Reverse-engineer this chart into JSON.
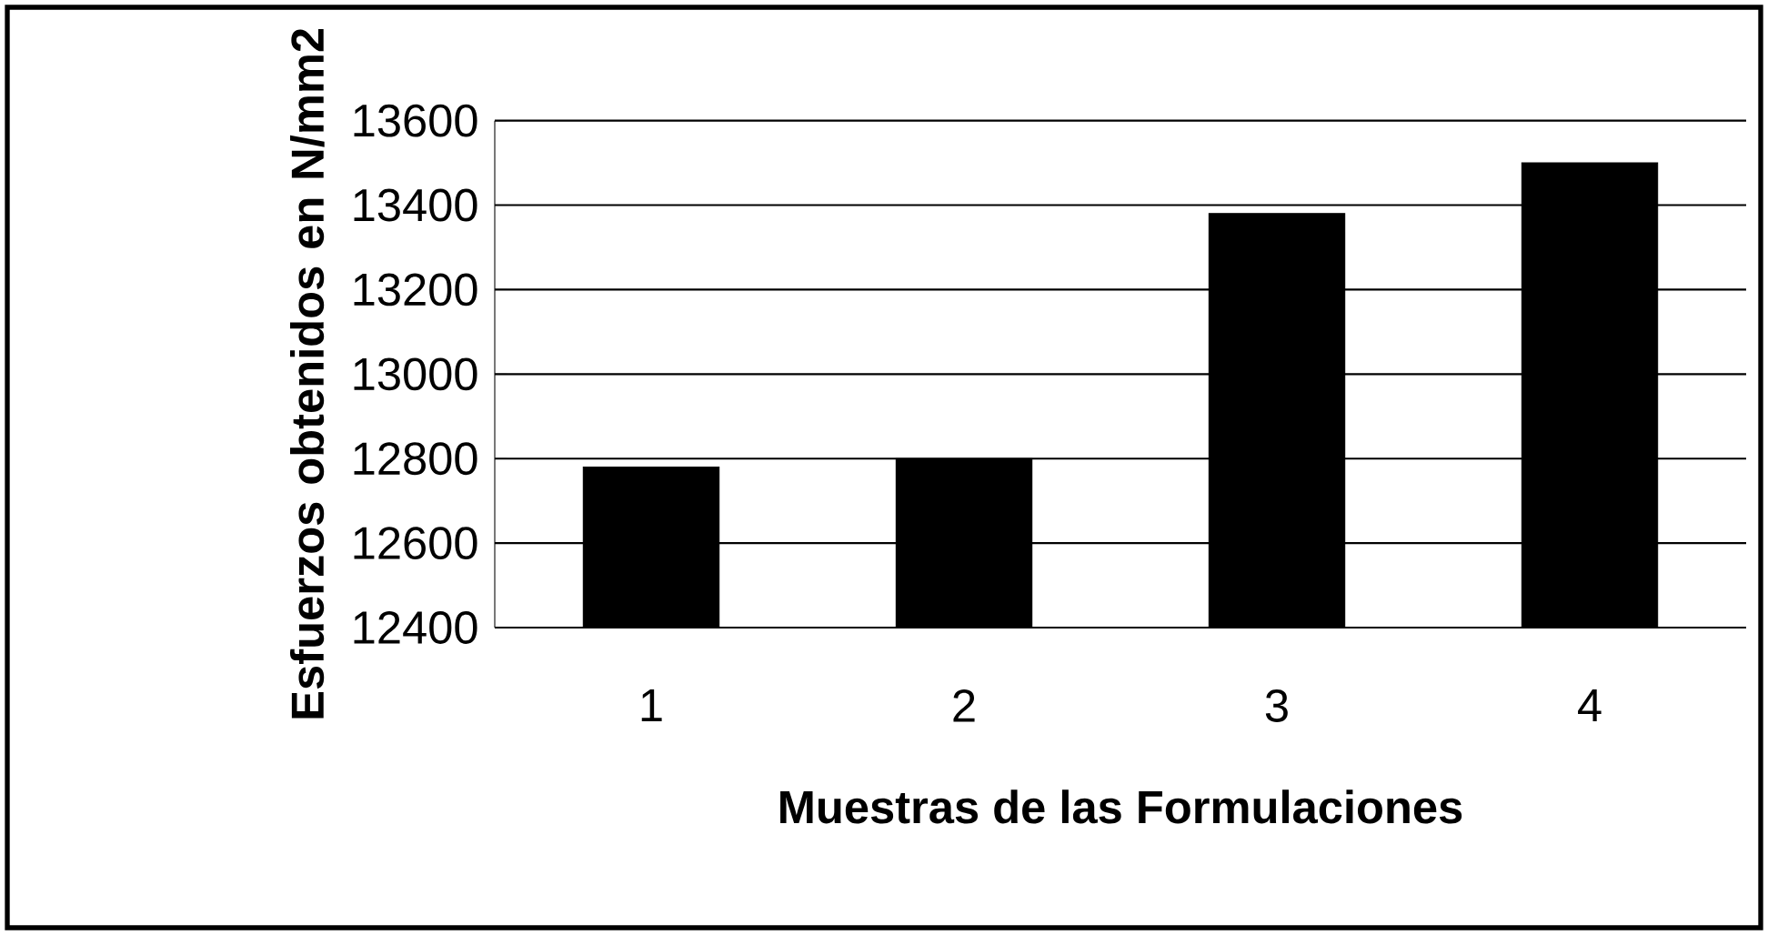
{
  "chart_data": {
    "type": "bar",
    "xlabel": "Muestras de las Formulaciones",
    "ylabel": "Esfuerzos obtenidos en N/mm2",
    "categories": [
      "1",
      "2",
      "3",
      "4"
    ],
    "values": [
      12780,
      12800,
      13380,
      13500
    ],
    "color": "#000000",
    "ylim": [
      12400,
      13600
    ],
    "yticks": [
      12400,
      12600,
      12800,
      13000,
      13200,
      13400,
      13600
    ],
    "grid": "y"
  }
}
